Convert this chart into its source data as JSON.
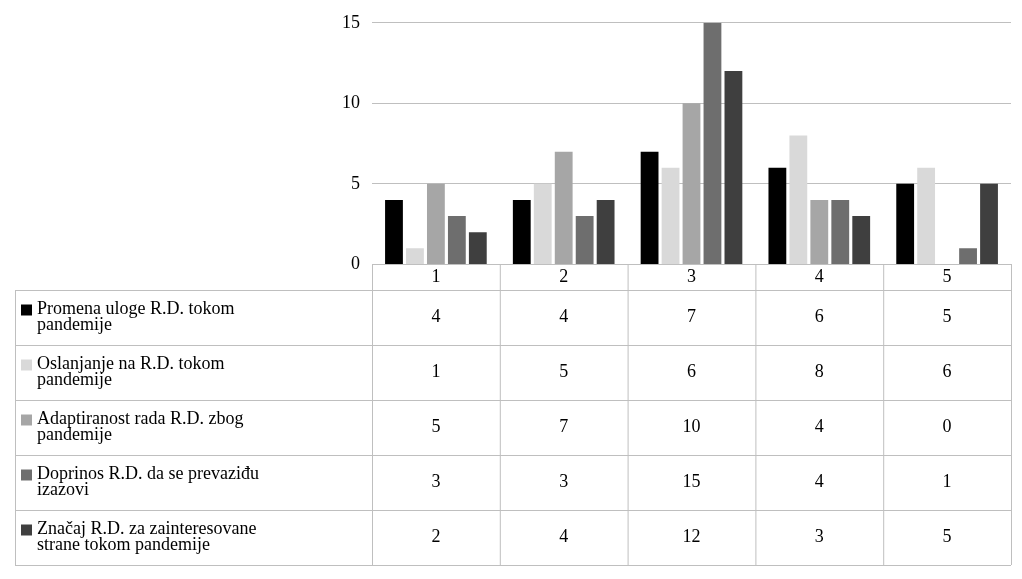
{
  "chart_data": {
    "type": "bar",
    "categories": [
      "1",
      "2",
      "3",
      "4",
      "5"
    ],
    "series": [
      {
        "name": "Promena uloge R.D. tokom pandemije",
        "color": "#000000",
        "values": [
          4,
          4,
          7,
          6,
          5
        ]
      },
      {
        "name": "Oslanjanje na R.D. tokom pandemije",
        "color": "#d9d9d9",
        "values": [
          1,
          5,
          6,
          8,
          6
        ]
      },
      {
        "name": "Adaptiranost rada R.D. zbog pandemije",
        "color": "#a6a6a6",
        "values": [
          5,
          7,
          10,
          4,
          0
        ]
      },
      {
        "name": "Doprinos R.D. da se prevaziđu izazovi",
        "color": "#6e6e6e",
        "values": [
          3,
          3,
          15,
          4,
          1
        ]
      },
      {
        "name": "Značaj R.D. za zainteresovane strane tokom pandemije",
        "color": "#3f3f3f",
        "values": [
          2,
          4,
          12,
          3,
          5
        ]
      }
    ],
    "ylim": [
      0,
      15
    ],
    "yticks": [
      0,
      5,
      10,
      15
    ],
    "grid": "y",
    "legend": "bottom",
    "data_labels": true
  }
}
